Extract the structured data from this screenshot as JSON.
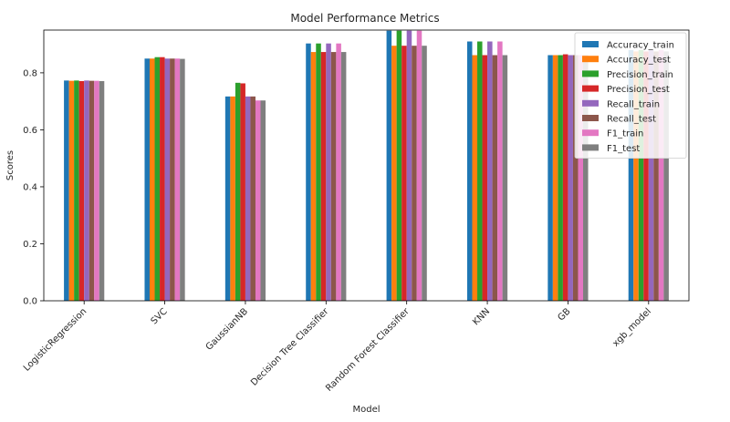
{
  "chart_data": {
    "type": "bar",
    "title": "Model Performance Metrics",
    "xlabel": "Model",
    "ylabel": "Scores",
    "ylim": [
      0,
      0.95
    ],
    "yticks": [
      0.0,
      0.2,
      0.4,
      0.6,
      0.8
    ],
    "ytick_labels": [
      "0.0",
      "0.2",
      "0.4",
      "0.6",
      "0.8"
    ],
    "categories": [
      "LogisticRegression",
      "SVC",
      "GaussianNB",
      "Decision Tree Classifier",
      "Random Forest Classifier",
      "KNN",
      "GB",
      "xgb_model"
    ],
    "legend_position": "top-right",
    "grid": false,
    "series": [
      {
        "name": "Accuracy_train",
        "color": "#1f77b4",
        "values": [
          0.773,
          0.85,
          0.717,
          0.903,
          0.948,
          0.91,
          0.862,
          0.88
        ]
      },
      {
        "name": "Accuracy_test",
        "color": "#ff7f0e",
        "values": [
          0.772,
          0.85,
          0.717,
          0.873,
          0.895,
          0.862,
          0.862,
          0.875
        ]
      },
      {
        "name": "Precision_train",
        "color": "#2ca02c",
        "values": [
          0.773,
          0.855,
          0.765,
          0.903,
          0.948,
          0.91,
          0.862,
          0.88
        ]
      },
      {
        "name": "Precision_test",
        "color": "#d62728",
        "values": [
          0.771,
          0.855,
          0.763,
          0.873,
          0.895,
          0.862,
          0.865,
          0.875
        ]
      },
      {
        "name": "Recall_train",
        "color": "#9467bd",
        "values": [
          0.773,
          0.85,
          0.717,
          0.903,
          0.948,
          0.91,
          0.862,
          0.88
        ]
      },
      {
        "name": "Recall_test",
        "color": "#8c564b",
        "values": [
          0.772,
          0.85,
          0.717,
          0.873,
          0.895,
          0.862,
          0.862,
          0.875
        ]
      },
      {
        "name": "F1_train",
        "color": "#e377c2",
        "values": [
          0.772,
          0.85,
          0.703,
          0.903,
          0.948,
          0.91,
          0.862,
          0.88
        ]
      },
      {
        "name": "F1_test",
        "color": "#7f7f7f",
        "values": [
          0.771,
          0.849,
          0.703,
          0.873,
          0.895,
          0.862,
          0.862,
          0.875
        ]
      }
    ]
  }
}
